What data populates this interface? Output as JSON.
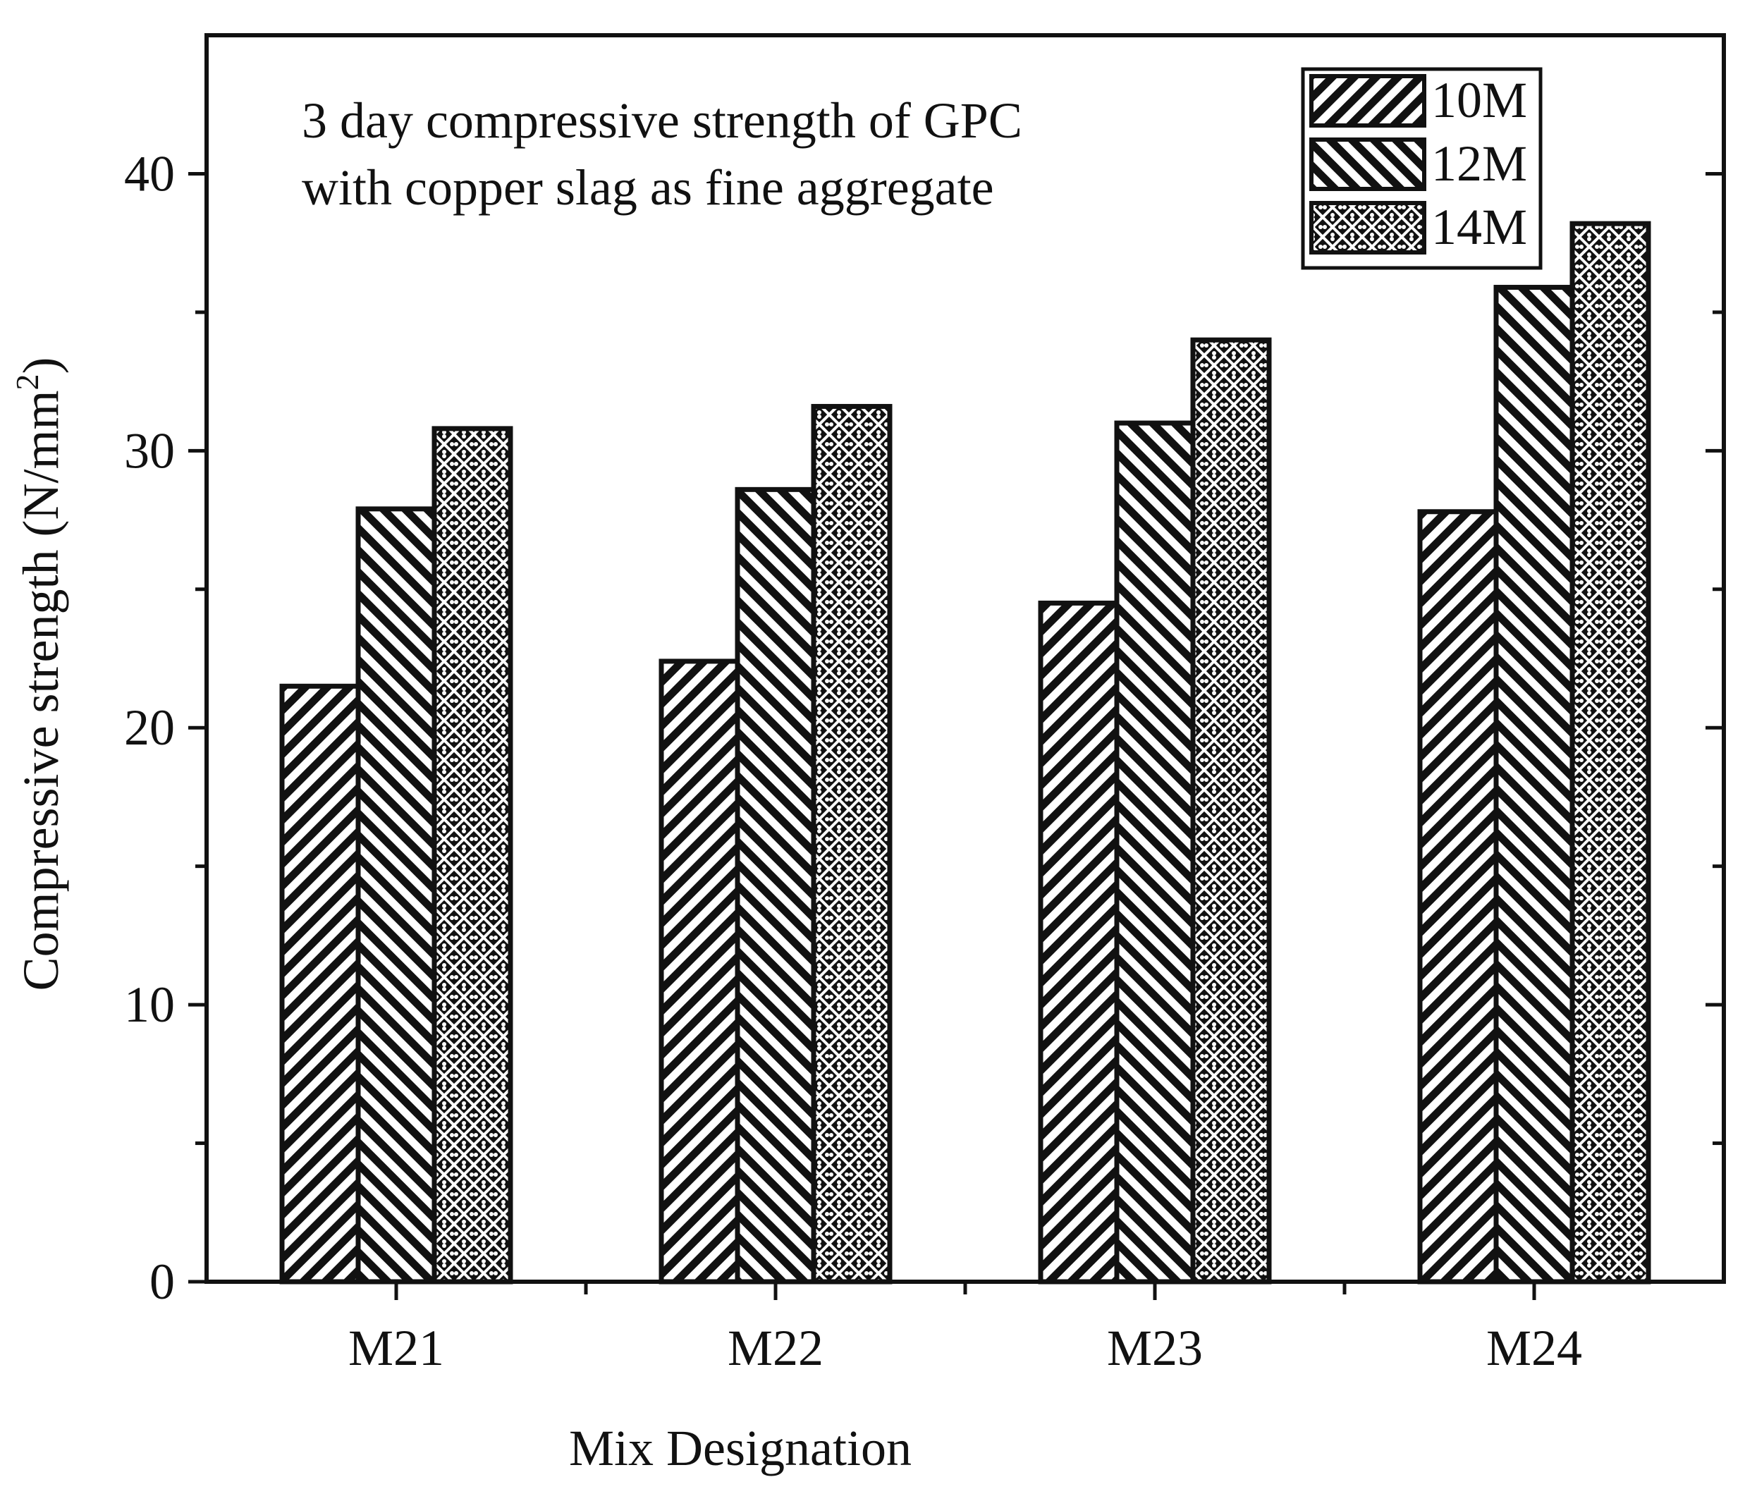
{
  "chart_data": {
    "type": "bar",
    "title": "",
    "annotation": [
      "3 day compressive strength of GPC",
      "with copper slag as fine aggregate"
    ],
    "xlabel": "Mix Designation",
    "ylabel_main": "Compressive strength (N/mm",
    "ylabel_sup": "2",
    "ylabel_close": ")",
    "categories": [
      "M21",
      "M22",
      "M23",
      "M24"
    ],
    "series": [
      {
        "name": "10M",
        "pattern": "hatch-diag-right",
        "values": [
          21.5,
          22.4,
          24.5,
          27.8
        ]
      },
      {
        "name": "12M",
        "pattern": "hatch-diag-left",
        "values": [
          27.9,
          28.6,
          31.0,
          35.9
        ]
      },
      {
        "name": "14M",
        "pattern": "hatch-cross-dots",
        "values": [
          30.8,
          31.6,
          34.0,
          38.2
        ]
      }
    ],
    "ylim": [
      0,
      45
    ],
    "yticks": [
      0,
      10,
      20,
      30,
      40
    ],
    "yticks_minor": [
      5,
      15,
      25,
      35
    ],
    "grid": false,
    "legend_position": "top-right",
    "colors": {
      "ink": "#111111",
      "background": "#ffffff"
    }
  }
}
